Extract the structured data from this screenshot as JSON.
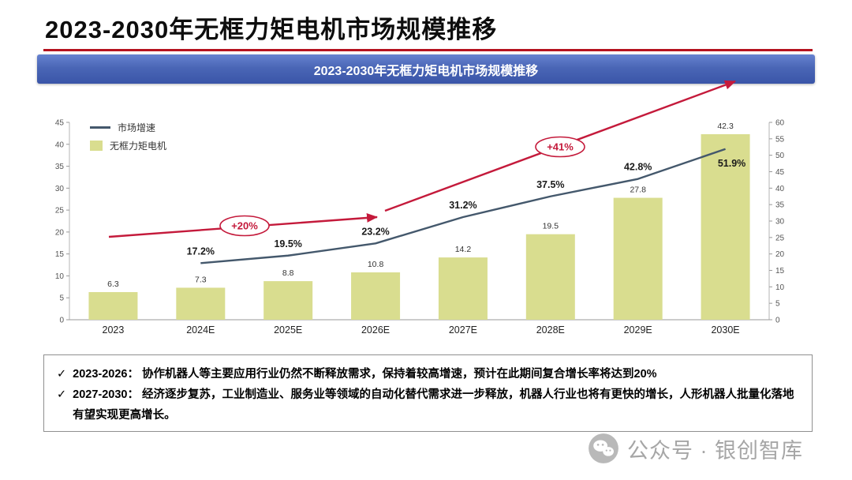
{
  "page": {
    "title": "2023-2030年无框力矩电机市场规模推移",
    "banner_title": "2023-2030年无框力矩电机市场规模推移"
  },
  "chart_data": {
    "type": "bar",
    "title": "2023-2030年无框力矩电机市场规模推移",
    "categories": [
      "2023",
      "2024E",
      "2025E",
      "2026E",
      "2027E",
      "2028E",
      "2029E",
      "2030E"
    ],
    "series": [
      {
        "name": "无框力矩电机",
        "kind": "bar",
        "axis": "left",
        "color": "#d9dd8f",
        "values": [
          6.3,
          7.3,
          8.8,
          10.8,
          14.2,
          19.5,
          27.8,
          42.3
        ]
      },
      {
        "name": "市场增速",
        "kind": "line",
        "axis": "right",
        "color": "#44586c",
        "values": [
          null,
          17.2,
          19.5,
          23.2,
          31.2,
          37.5,
          42.8,
          51.9
        ],
        "value_labels": [
          "",
          "17.2%",
          "19.5%",
          "23.2%",
          "31.2%",
          "37.5%",
          "42.8%",
          "51.9%"
        ]
      }
    ],
    "left_axis": {
      "min": 0,
      "max": 45,
      "step": 5
    },
    "right_axis": {
      "min": 0,
      "max": 60,
      "step": 5
    },
    "legend_position": "top-left",
    "grid": false,
    "trend_arrow_color": "#c41a3b",
    "annotations": [
      {
        "text": "+20%"
      },
      {
        "text": "+41%"
      }
    ]
  },
  "notes": {
    "bullet": "✓",
    "items": [
      "2023-2026： 协作机器人等主要应用行业仍然不断释放需求，保持着较高增速，预计在此期间复合增长率将达到20%",
      "2027-2030： 经济逐步复苏，工业制造业、服务业等领域的自动化替代需求进一步释放，机器人行业也将有更快的增长，人形机器人批量化落地有望实现更高增长。"
    ]
  },
  "watermark": {
    "text": "公众号 · 银创智库"
  }
}
